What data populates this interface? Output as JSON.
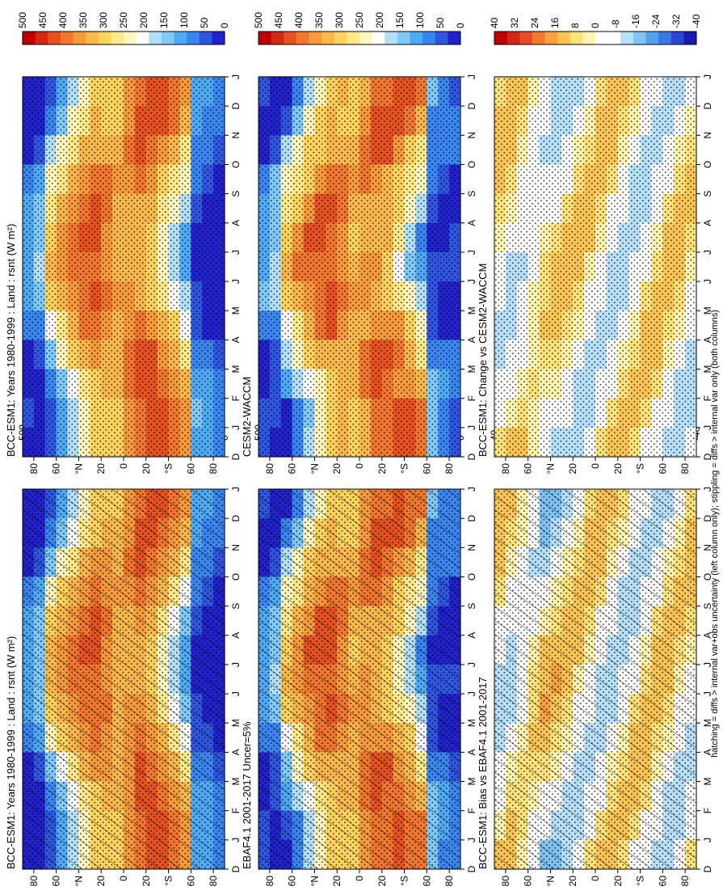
{
  "footnote": "hatching = diffs > internal var+obs uncertainty (left column only); stippling = diffs > internal var only (both columns)",
  "palettes": {
    "abs": [
      "#2222cc",
      "#2f56e0",
      "#3a86f0",
      "#4faaf5",
      "#7fcaf8",
      "#b4e0f7",
      "#ffffff",
      "#fff7bf",
      "#ffe98a",
      "#fdd35c",
      "#fbb84a",
      "#f79a3a",
      "#f0772c",
      "#e5521f",
      "#d42816",
      "#c00000"
    ],
    "diff": [
      "#1a1ab4",
      "#2b47d1",
      "#3a78e6",
      "#53a2f0",
      "#7fc3f5",
      "#b6e0f9",
      "#ffffff",
      "#ffffff",
      "#fff4b0",
      "#ffe27a",
      "#fbc553",
      "#f7a23d",
      "#f0792c",
      "#e54f1f",
      "#d42616",
      "#c00000"
    ]
  },
  "panels": [
    {
      "id": "model-1980-1999-hatched",
      "title": "BCC-ESM1: Years 1980-1999 : Land : rsnt (W m²)",
      "scale": "abs",
      "hatch": true
    },
    {
      "id": "model-1980-1999",
      "title": "BCC-ESM1: Years 1980-1999 : Land : rsnt (W m²)",
      "scale": "abs",
      "hatch": false
    },
    {
      "id": "obs-ebaf",
      "title": "EBAF4.1 2001-2017 Uncer=5%",
      "scale": "abs",
      "hatch": true
    },
    {
      "id": "ref-cesm",
      "title": "CESM2-WACCM",
      "scale": "abs",
      "hatch": false
    },
    {
      "id": "bias",
      "title": "BCC-ESM1: Bias vs EBAF4.1 2001-2017",
      "scale": "diff",
      "hatch": true
    },
    {
      "id": "change",
      "title": "BCC-ESM1: Change vs CESM2-WACCM",
      "scale": "diff",
      "hatch": false
    }
  ],
  "chart_data": {
    "type": "heatmap",
    "variable": "rsnt",
    "units": "W m²",
    "month_ticks": [
      "D",
      "J",
      "F",
      "M",
      "A",
      "M",
      "J",
      "J",
      "A",
      "S",
      "O",
      "N",
      "D",
      "J"
    ],
    "lat_ticks": [
      "80",
      "60",
      "°N",
      "20",
      "0",
      "20",
      "°S",
      "60",
      "80"
    ],
    "lat_tick_values": [
      80,
      60,
      40,
      20,
      0,
      -20,
      -40,
      -60,
      -80
    ],
    "abs_colorbar_labels": [
      "500",
      "450",
      "400",
      "350",
      "300",
      "250",
      "200",
      "150",
      "100",
      "50",
      "0"
    ],
    "abs_colorbar_values": [
      500,
      450,
      400,
      350,
      300,
      250,
      200,
      150,
      100,
      50,
      0
    ],
    "diff_colorbar_labels": [
      "40",
      "32",
      "24",
      "16",
      "8",
      "0",
      "-8",
      "-16",
      "-24",
      "-32",
      "-40"
    ],
    "diff_colorbar_values": [
      40,
      32,
      24,
      16,
      8,
      0,
      -8,
      -16,
      -24,
      -32,
      -40
    ]
  }
}
